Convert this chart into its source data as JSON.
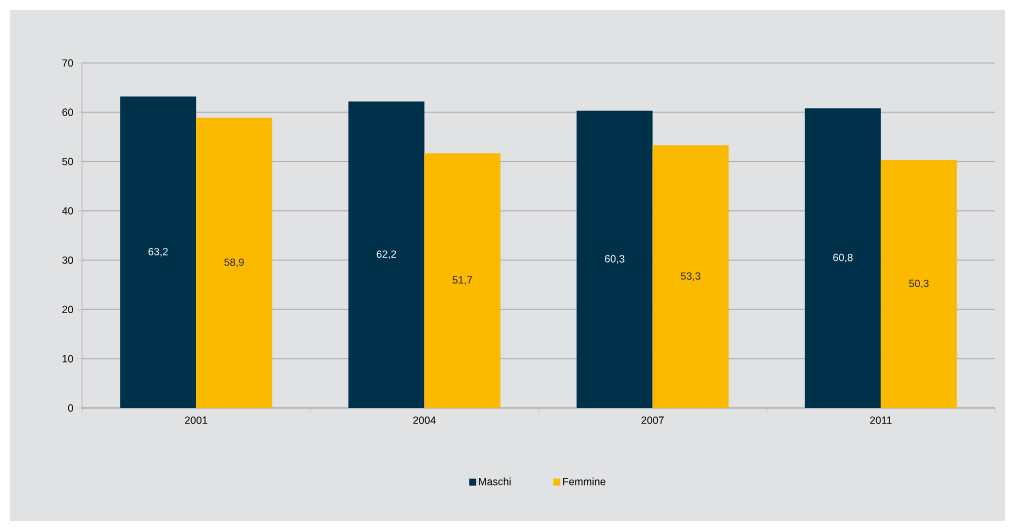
{
  "chart_data": {
    "type": "bar",
    "categories": [
      "2001",
      "2004",
      "2007",
      "2011"
    ],
    "series": [
      {
        "name": "Maschi",
        "color": "#00314b",
        "values": [
          63.2,
          62.2,
          60.3,
          60.8
        ],
        "value_labels": [
          "63,2",
          "62,2",
          "60,3",
          "60,8"
        ]
      },
      {
        "name": "Femmine",
        "color": "#fbba00",
        "values": [
          58.9,
          51.7,
          53.3,
          50.3
        ],
        "value_labels": [
          "58,9",
          "51,7",
          "53,3",
          "50,3"
        ]
      }
    ],
    "ylim": [
      0,
      70
    ],
    "yticks": [
      0,
      10,
      20,
      30,
      40,
      50,
      60,
      70
    ],
    "grid": "y",
    "legend": "bottom"
  }
}
